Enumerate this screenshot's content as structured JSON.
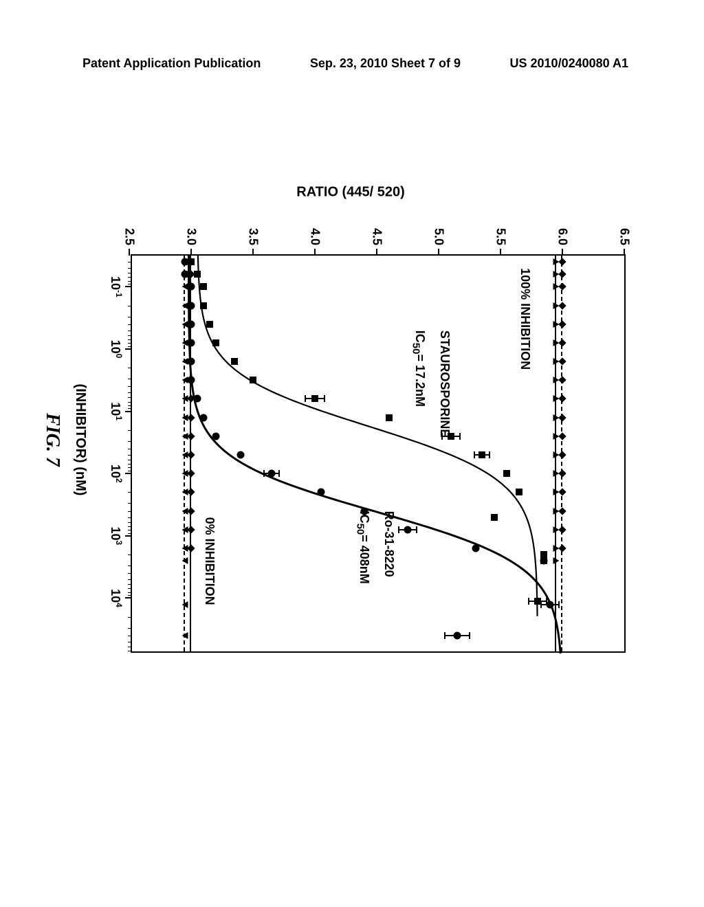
{
  "header": {
    "left": "Patent Application Publication",
    "center": "Sep. 23, 2010  Sheet 7 of 9",
    "right": "US 2010/0240080 A1"
  },
  "chart": {
    "type": "line-scatter",
    "ylabel": "RATIO (445/ 520)",
    "xlabel": "(INHIBITOR) (nM)",
    "fig_label": "FIG. 7",
    "ylim": [
      2.5,
      6.5
    ],
    "ytick_step": 0.5,
    "yticks": [
      "2.5",
      "3.0",
      "3.5",
      "4.0",
      "4.5",
      "5.0",
      "5.5",
      "6.0",
      "6.5"
    ],
    "xscale": "log",
    "xlim_log": [
      -1.5,
      4.9
    ],
    "xticks_log": [
      -1,
      0,
      1,
      2,
      3,
      4
    ],
    "xtick_labels": [
      "10⁻¹",
      "10⁰",
      "10¹",
      "10²",
      "10³",
      "10⁴"
    ],
    "ref_lines": [
      {
        "y": 6.0,
        "style": "dashed",
        "label": ""
      },
      {
        "y": 5.95,
        "style": "solid",
        "label": ""
      },
      {
        "y": 3.0,
        "style": "solid",
        "label": ""
      },
      {
        "y": 2.95,
        "style": "dashed",
        "label": ""
      }
    ],
    "annotations": [
      {
        "text": "100% INHIBITION",
        "x_log": -1.3,
        "y": 5.7
      },
      {
        "text": "STAUROSPORINE",
        "x_log": -0.3,
        "y": 5.05
      },
      {
        "text_html": "IC<sub>50</sub>= 17.2nM",
        "x_log": -0.3,
        "y": 4.85
      },
      {
        "text": "Ro-31-8220",
        "x_log": 2.6,
        "y": 4.6
      },
      {
        "text_html": "IC<sub>50</sub>= 408nM",
        "x_log": 2.6,
        "y": 4.4
      },
      {
        "text": "0% INHIBITION",
        "x_log": 2.7,
        "y": 3.15
      }
    ],
    "background_color": "#ffffff",
    "curve_color": "#000000",
    "line_width": 2.5,
    "marker_color": "#000000",
    "marker_size": 10,
    "series": [
      {
        "name": "staurosporine",
        "marker": "square",
        "ic50_nM": 17.2,
        "points": [
          {
            "x_log": -1.4,
            "y": 3.0
          },
          {
            "x_log": -1.2,
            "y": 3.05
          },
          {
            "x_log": -1.0,
            "y": 3.1
          },
          {
            "x_log": -0.7,
            "y": 3.1
          },
          {
            "x_log": -0.4,
            "y": 3.15
          },
          {
            "x_log": -0.1,
            "y": 3.2
          },
          {
            "x_log": 0.2,
            "y": 3.35
          },
          {
            "x_log": 0.5,
            "y": 3.5
          },
          {
            "x_log": 0.8,
            "y": 4.0,
            "err": 0.08
          },
          {
            "x_log": 1.1,
            "y": 4.6
          },
          {
            "x_log": 1.4,
            "y": 5.1,
            "err": 0.07
          },
          {
            "x_log": 1.7,
            "y": 5.35,
            "err": 0.06
          },
          {
            "x_log": 2.0,
            "y": 5.55
          },
          {
            "x_log": 2.3,
            "y": 5.65
          },
          {
            "x_log": 2.7,
            "y": 5.45
          },
          {
            "x_log": 3.3,
            "y": 5.85
          },
          {
            "x_log": 3.4,
            "y": 5.85
          },
          {
            "x_log": 4.05,
            "y": 5.8,
            "err": 0.07
          }
        ]
      },
      {
        "name": "ro-31-8220",
        "marker": "circle",
        "ic50_nM": 408,
        "points": [
          {
            "x_log": -1.4,
            "y": 2.95
          },
          {
            "x_log": -1.2,
            "y": 2.95
          },
          {
            "x_log": -1.0,
            "y": 3.0
          },
          {
            "x_log": -0.7,
            "y": 3.0
          },
          {
            "x_log": -0.4,
            "y": 3.0
          },
          {
            "x_log": -0.1,
            "y": 3.0
          },
          {
            "x_log": 0.2,
            "y": 3.0
          },
          {
            "x_log": 0.5,
            "y": 3.0
          },
          {
            "x_log": 0.8,
            "y": 3.05
          },
          {
            "x_log": 1.1,
            "y": 3.1
          },
          {
            "x_log": 1.4,
            "y": 3.2
          },
          {
            "x_log": 1.7,
            "y": 3.4
          },
          {
            "x_log": 2.0,
            "y": 3.65,
            "err": 0.06
          },
          {
            "x_log": 2.3,
            "y": 4.05
          },
          {
            "x_log": 2.6,
            "y": 4.4
          },
          {
            "x_log": 2.9,
            "y": 4.75,
            "err": 0.07
          },
          {
            "x_log": 3.2,
            "y": 5.3
          },
          {
            "x_log": 3.4,
            "y": 5.85
          },
          {
            "x_log": 4.1,
            "y": 5.9,
            "err": 0.07
          },
          {
            "x_log": 4.6,
            "y": 5.15,
            "err": 0.1
          }
        ]
      },
      {
        "name": "diamond-series-top",
        "marker": "diamond",
        "points": [
          {
            "x_log": -1.4,
            "y": 6.0
          },
          {
            "x_log": -1.2,
            "y": 6.0
          },
          {
            "x_log": -1.0,
            "y": 6.0
          },
          {
            "x_log": -0.7,
            "y": 6.0
          },
          {
            "x_log": -0.4,
            "y": 6.0
          },
          {
            "x_log": -0.1,
            "y": 6.0
          },
          {
            "x_log": 0.2,
            "y": 6.0
          },
          {
            "x_log": 0.5,
            "y": 6.0
          },
          {
            "x_log": 0.8,
            "y": 6.0
          },
          {
            "x_log": 1.1,
            "y": 6.0
          },
          {
            "x_log": 1.4,
            "y": 6.0
          },
          {
            "x_log": 1.7,
            "y": 6.0
          },
          {
            "x_log": 2.0,
            "y": 6.0
          },
          {
            "x_log": 2.3,
            "y": 6.0
          },
          {
            "x_log": 2.6,
            "y": 6.0
          },
          {
            "x_log": 2.9,
            "y": 6.0
          },
          {
            "x_log": 3.2,
            "y": 6.0
          }
        ]
      },
      {
        "name": "triangle-series-top",
        "marker": "triangle",
        "points": [
          {
            "x_log": -1.4,
            "y": 5.95
          },
          {
            "x_log": -1.2,
            "y": 5.95
          },
          {
            "x_log": -1.0,
            "y": 5.95
          },
          {
            "x_log": -0.7,
            "y": 5.95
          },
          {
            "x_log": -0.4,
            "y": 5.95
          },
          {
            "x_log": -0.1,
            "y": 5.95
          },
          {
            "x_log": 0.2,
            "y": 5.95
          },
          {
            "x_log": 0.5,
            "y": 5.95
          },
          {
            "x_log": 0.8,
            "y": 5.95
          },
          {
            "x_log": 1.1,
            "y": 5.95
          },
          {
            "x_log": 1.4,
            "y": 5.95
          },
          {
            "x_log": 1.7,
            "y": 5.95
          },
          {
            "x_log": 2.0,
            "y": 5.95
          },
          {
            "x_log": 2.3,
            "y": 5.95
          },
          {
            "x_log": 2.6,
            "y": 5.95
          },
          {
            "x_log": 2.9,
            "y": 5.95
          },
          {
            "x_log": 3.2,
            "y": 5.95
          },
          {
            "x_log": 3.4,
            "y": 5.95
          }
        ]
      },
      {
        "name": "diamond-series-bottom",
        "marker": "diamond",
        "points": [
          {
            "x_log": -1.4,
            "y": 3.0
          },
          {
            "x_log": -1.2,
            "y": 3.0
          },
          {
            "x_log": -1.0,
            "y": 3.0
          },
          {
            "x_log": -0.7,
            "y": 3.0
          },
          {
            "x_log": -0.4,
            "y": 3.0
          },
          {
            "x_log": -0.1,
            "y": 3.0
          },
          {
            "x_log": 0.2,
            "y": 3.0
          },
          {
            "x_log": 0.5,
            "y": 3.0
          },
          {
            "x_log": 0.8,
            "y": 3.0
          },
          {
            "x_log": 1.1,
            "y": 3.0
          },
          {
            "x_log": 1.4,
            "y": 3.0
          },
          {
            "x_log": 1.7,
            "y": 3.0
          },
          {
            "x_log": 2.0,
            "y": 3.0
          },
          {
            "x_log": 2.3,
            "y": 3.0
          },
          {
            "x_log": 2.6,
            "y": 3.0
          },
          {
            "x_log": 2.9,
            "y": 3.0
          },
          {
            "x_log": 3.2,
            "y": 3.0
          }
        ]
      },
      {
        "name": "triangle-down-series-bottom",
        "marker": "triangle-down",
        "points": [
          {
            "x_log": -1.4,
            "y": 2.95
          },
          {
            "x_log": -1.2,
            "y": 2.95
          },
          {
            "x_log": -1.0,
            "y": 2.95
          },
          {
            "x_log": -0.7,
            "y": 2.95
          },
          {
            "x_log": -0.4,
            "y": 2.95
          },
          {
            "x_log": -0.1,
            "y": 2.95
          },
          {
            "x_log": 0.2,
            "y": 2.95
          },
          {
            "x_log": 0.5,
            "y": 2.95
          },
          {
            "x_log": 0.8,
            "y": 2.95
          },
          {
            "x_log": 1.1,
            "y": 2.95
          },
          {
            "x_log": 1.4,
            "y": 2.95
          },
          {
            "x_log": 1.7,
            "y": 2.95
          },
          {
            "x_log": 2.0,
            "y": 2.95
          },
          {
            "x_log": 2.3,
            "y": 2.95
          },
          {
            "x_log": 2.6,
            "y": 2.95
          },
          {
            "x_log": 2.9,
            "y": 2.95
          },
          {
            "x_log": 3.2,
            "y": 2.95
          },
          {
            "x_log": 3.4,
            "y": 2.95
          },
          {
            "x_log": 4.1,
            "y": 2.95
          },
          {
            "x_log": 4.6,
            "y": 2.95
          }
        ]
      }
    ]
  }
}
